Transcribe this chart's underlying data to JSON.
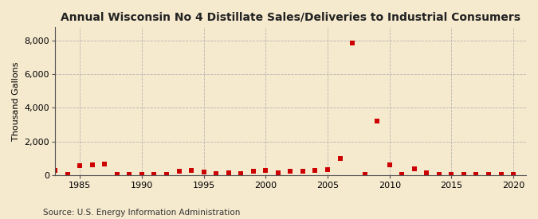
{
  "title": "Annual Wisconsin No 4 Distillate Sales/Deliveries to Industrial Consumers",
  "ylabel": "Thousand Gallons",
  "source": "Source: U.S. Energy Information Administration",
  "background_color": "#f5e9ce",
  "marker_color": "#cc0000",
  "grid_color": "#aaaaaa",
  "xlim": [
    1983,
    2021
  ],
  "ylim": [
    0,
    8800
  ],
  "yticks": [
    0,
    2000,
    4000,
    6000,
    8000
  ],
  "xticks": [
    1985,
    1990,
    1995,
    2000,
    2005,
    2010,
    2015,
    2020
  ],
  "years": [
    1983,
    1984,
    1985,
    1986,
    1987,
    1988,
    1989,
    1990,
    1991,
    1992,
    1993,
    1994,
    1995,
    1996,
    1997,
    1998,
    1999,
    2000,
    2001,
    2002,
    2003,
    2004,
    2005,
    2006,
    2007,
    2008,
    2009,
    2010,
    2011,
    2012,
    2013,
    2014,
    2015,
    2016,
    2017,
    2018,
    2019,
    2020
  ],
  "values": [
    270,
    10,
    550,
    600,
    650,
    30,
    15,
    10,
    10,
    10,
    200,
    250,
    180,
    100,
    130,
    100,
    230,
    280,
    120,
    200,
    230,
    290,
    310,
    1000,
    7850,
    10,
    3200,
    600,
    10,
    350,
    120,
    10,
    30,
    30,
    30,
    20,
    20,
    10
  ],
  "title_fontsize": 10,
  "axis_label_fontsize": 8,
  "tick_fontsize": 8,
  "source_fontsize": 7.5
}
